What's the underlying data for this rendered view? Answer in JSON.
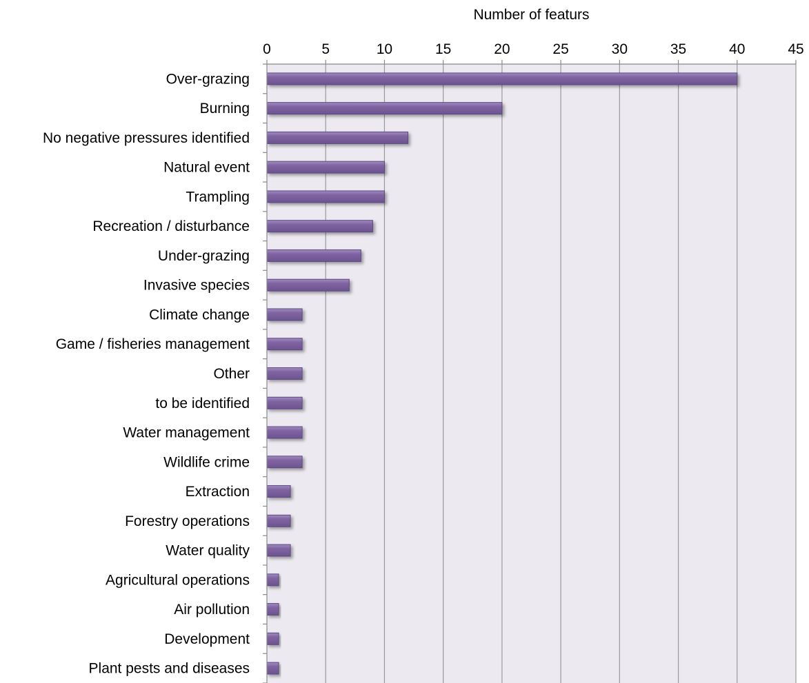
{
  "chart_data": {
    "type": "bar",
    "orientation": "horizontal",
    "title": "",
    "xlabel": "Number of featurs",
    "ylabel": "",
    "xlim": [
      0,
      45
    ],
    "x_ticks": [
      0,
      5,
      10,
      15,
      20,
      25,
      30,
      35,
      40,
      45
    ],
    "x_axis_position": "top",
    "grid": true,
    "legend": "none",
    "categories": [
      "Over-grazing",
      "Burning",
      "No negative pressures identified",
      "Natural event",
      "Trampling",
      "Recreation / disturbance",
      "Under-grazing",
      "Invasive species",
      "Climate change",
      "Game / fisheries management",
      "Other",
      "to be identified",
      "Water management",
      "Wildlife crime",
      "Extraction",
      "Forestry operations",
      "Water quality",
      "Agricultural operations",
      "Air pollution",
      "Development",
      "Plant pests and diseases"
    ],
    "values": [
      40,
      20,
      12,
      10,
      10,
      9,
      8,
      7,
      3,
      3,
      3,
      3,
      3,
      3,
      2,
      2,
      2,
      1,
      1,
      1,
      1
    ],
    "colors": {
      "bar_fill": "#8064a2",
      "bar_stroke": "#5c4680",
      "plot_background": "#eceaf0",
      "gridline": "#999999",
      "axis": "#888888"
    }
  }
}
